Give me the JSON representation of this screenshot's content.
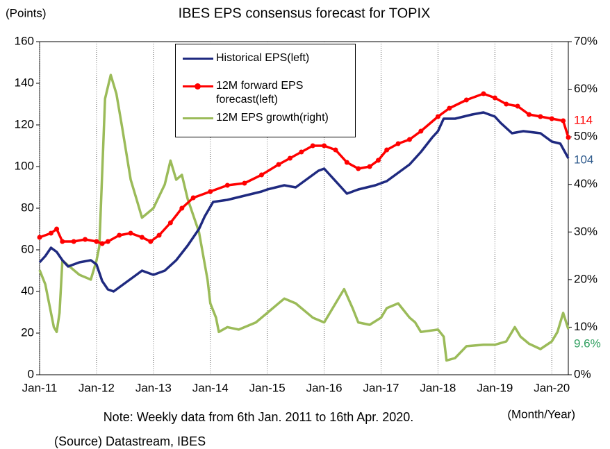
{
  "chart_data": {
    "type": "line",
    "title": "IBES EPS consensus forecast for TOPIX",
    "y_label": "(Points)",
    "x_label": "(Month/Year)",
    "note": "Note: Weekly data from 6th Jan. 2011 to 16th Apr. 2020.",
    "source": "(Source) Datastream, IBES",
    "xlim": [
      2011,
      2020.29
    ],
    "xticks": [
      {
        "value": 2011,
        "label": "Jan-11"
      },
      {
        "value": 2012,
        "label": "Jan-12"
      },
      {
        "value": 2013,
        "label": "Jan-13"
      },
      {
        "value": 2014,
        "label": "Jan-14"
      },
      {
        "value": 2015,
        "label": "Jan-15"
      },
      {
        "value": 2016,
        "label": "Jan-16"
      },
      {
        "value": 2017,
        "label": "Jan-17"
      },
      {
        "value": 2018,
        "label": "Jan-18"
      },
      {
        "value": 2019,
        "label": "Jan-19"
      },
      {
        "value": 2020,
        "label": "Jan-20"
      }
    ],
    "ylim": [
      0,
      160
    ],
    "yticks": [
      0,
      20,
      40,
      60,
      80,
      100,
      120,
      140,
      160
    ],
    "y2lim": [
      0,
      70
    ],
    "y2ticks": [
      {
        "value": 0,
        "label": "0%"
      },
      {
        "value": 10,
        "label": "10%"
      },
      {
        "value": 20,
        "label": "20%"
      },
      {
        "value": 30,
        "label": "30%"
      },
      {
        "value": 40,
        "label": "40%"
      },
      {
        "value": 50,
        "label": "50%"
      },
      {
        "value": 60,
        "label": "60%"
      },
      {
        "value": 70,
        "label": "70%"
      }
    ],
    "grid": "x",
    "series": [
      {
        "name": "Historical EPS(left)",
        "color": "#1f2a80",
        "end_color": "#2e5a8c",
        "axis": "y",
        "x": [
          2011.0,
          2011.1,
          2011.2,
          2011.3,
          2011.4,
          2011.5,
          2011.7,
          2011.9,
          2012.0,
          2012.1,
          2012.2,
          2012.3,
          2012.5,
          2012.7,
          2012.8,
          2013.0,
          2013.2,
          2013.4,
          2013.6,
          2013.8,
          2013.9,
          2014.05,
          2014.3,
          2014.6,
          2014.9,
          2015.0,
          2015.3,
          2015.5,
          2015.7,
          2015.9,
          2016.0,
          2016.1,
          2016.3,
          2016.4,
          2016.6,
          2016.9,
          2017.1,
          2017.3,
          2017.5,
          2017.7,
          2017.9,
          2018.0,
          2018.1,
          2018.3,
          2018.6,
          2018.8,
          2019.0,
          2019.1,
          2019.3,
          2019.5,
          2019.8,
          2020.0,
          2020.15,
          2020.29
        ],
        "values": [
          54,
          57,
          61,
          59,
          55,
          52,
          54,
          55,
          53,
          45,
          41,
          40,
          44,
          48,
          50,
          48,
          50,
          55,
          62,
          70,
          76,
          83,
          84,
          86,
          88,
          89,
          91,
          90,
          94,
          98,
          99,
          96,
          90,
          87,
          89,
          91,
          93,
          97,
          101,
          107,
          114,
          117,
          123,
          123,
          125,
          126,
          124,
          121,
          116,
          117,
          116,
          112,
          111,
          104
        ]
      },
      {
        "name": "12M forward EPS forecast(left)",
        "color": "#ff0000",
        "end_color": "#ff0000",
        "axis": "y",
        "markers": true,
        "x": [
          2011.0,
          2011.2,
          2011.3,
          2011.4,
          2011.6,
          2011.8,
          2012.0,
          2012.1,
          2012.2,
          2012.4,
          2012.6,
          2012.8,
          2012.95,
          2013.1,
          2013.3,
          2013.5,
          2013.7,
          2014.0,
          2014.3,
          2014.6,
          2014.9,
          2015.2,
          2015.4,
          2015.6,
          2015.8,
          2016.0,
          2016.2,
          2016.4,
          2016.6,
          2016.8,
          2016.95,
          2017.1,
          2017.3,
          2017.5,
          2017.7,
          2018.0,
          2018.2,
          2018.5,
          2018.8,
          2019.0,
          2019.2,
          2019.4,
          2019.6,
          2019.8,
          2020.0,
          2020.2,
          2020.29
        ],
        "values": [
          66,
          68,
          70,
          64,
          64,
          65,
          64,
          63,
          64,
          67,
          68,
          66,
          64,
          67,
          73,
          80,
          85,
          88,
          91,
          92,
          96,
          101,
          104,
          107,
          110,
          110,
          108,
          102,
          99,
          100,
          103,
          108,
          111,
          113,
          117,
          124,
          128,
          132,
          135,
          133,
          130,
          129,
          125,
          124,
          123,
          122,
          114
        ]
      },
      {
        "name": "12M EPS growth(right)",
        "color": "#9bbb59",
        "end_color": "#2e9e5e",
        "axis": "y2",
        "end_label": "9.6%",
        "x": [
          2011.0,
          2011.1,
          2011.15,
          2011.25,
          2011.3,
          2011.35,
          2011.4,
          2011.5,
          2011.7,
          2011.9,
          2012.0,
          2012.05,
          2012.15,
          2012.25,
          2012.35,
          2012.45,
          2012.6,
          2012.7,
          2012.8,
          2012.9,
          2013.0,
          2013.2,
          2013.3,
          2013.4,
          2013.5,
          2013.6,
          2013.8,
          2013.95,
          2014.0,
          2014.1,
          2014.15,
          2014.3,
          2014.5,
          2014.8,
          2015.0,
          2015.2,
          2015.3,
          2015.5,
          2015.8,
          2016.0,
          2016.1,
          2016.3,
          2016.35,
          2016.5,
          2016.6,
          2016.8,
          2017.0,
          2017.1,
          2017.3,
          2017.5,
          2017.6,
          2017.7,
          2018.0,
          2018.1,
          2018.15,
          2018.3,
          2018.5,
          2018.8,
          2019.0,
          2019.2,
          2019.35,
          2019.45,
          2019.6,
          2019.8,
          2020.0,
          2020.1,
          2020.2,
          2020.29
        ],
        "values": [
          22,
          19,
          16,
          10,
          9,
          13,
          24,
          23,
          21,
          20,
          24,
          27,
          58,
          63,
          59,
          52,
          41,
          37,
          33,
          34,
          35,
          40,
          45,
          41,
          42,
          37,
          30,
          20,
          15,
          12,
          9,
          10,
          9.5,
          11,
          13,
          15,
          16,
          15,
          12,
          11,
          13,
          17,
          18,
          14,
          11,
          10.5,
          12,
          14,
          15,
          12,
          11,
          9,
          9.5,
          8,
          3,
          3.5,
          6,
          6.3,
          6.3,
          7,
          10,
          8,
          6.5,
          5.4,
          7,
          9,
          13,
          9.6
        ]
      }
    ]
  }
}
